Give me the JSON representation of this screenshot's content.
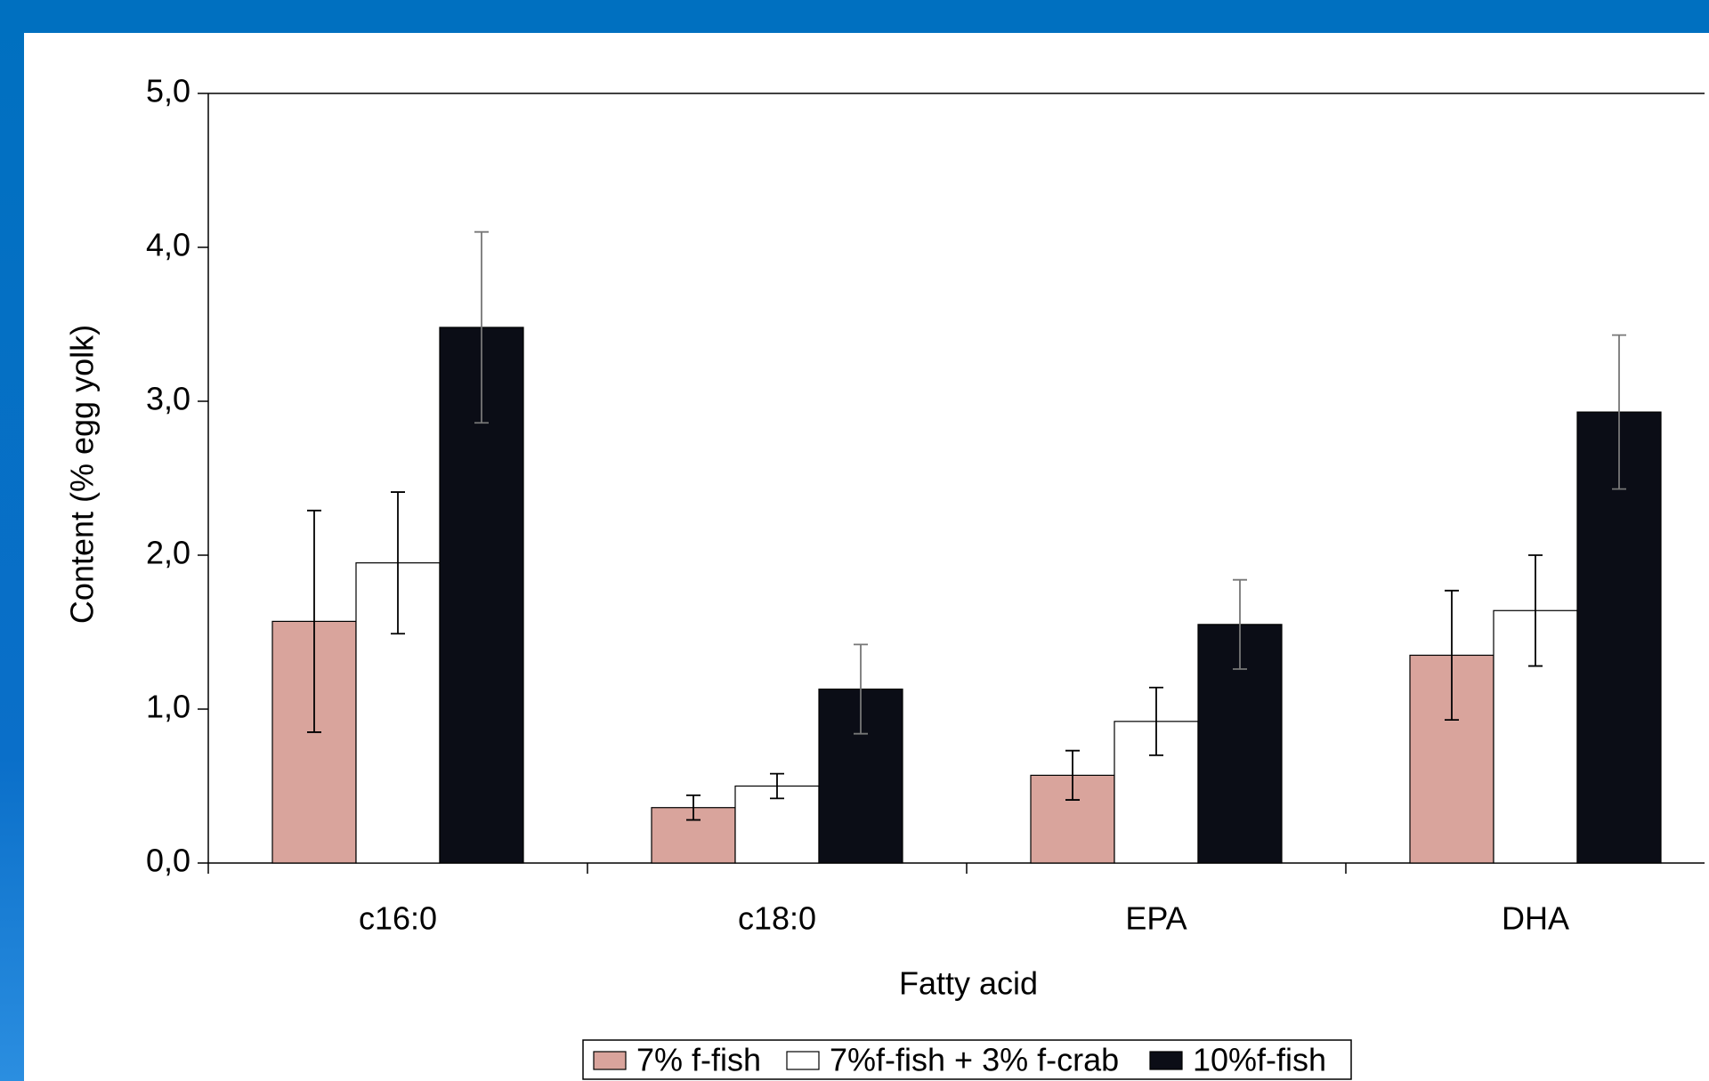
{
  "chart_data": {
    "type": "bar",
    "x_label": "Fatty acid",
    "y_label": "Content (% egg yolk)",
    "categories": [
      "c16:0",
      "c18:0",
      "EPA",
      "DHA"
    ],
    "series": [
      {
        "name": "7% f-fish",
        "color": "#d9a49c",
        "values": [
          1.57,
          0.36,
          0.57,
          1.35
        ],
        "errors": [
          0.72,
          0.08,
          0.16,
          0.42
        ]
      },
      {
        "name": "7%f-fish + 3% f-crab",
        "color": "#ffffff",
        "values": [
          1.95,
          0.5,
          0.92,
          1.64
        ],
        "errors": [
          0.46,
          0.08,
          0.22,
          0.36
        ]
      },
      {
        "name": "10%f-fish",
        "color": "#0b0d16",
        "values": [
          3.48,
          1.13,
          1.55,
          2.93
        ],
        "errors": [
          0.62,
          0.29,
          0.29,
          0.5
        ]
      }
    ],
    "ylim": [
      0,
      5
    ],
    "yticks": [
      {
        "value": 0,
        "label": "0,0"
      },
      {
        "value": 1,
        "label": "1,0"
      },
      {
        "value": 2,
        "label": "2,0"
      },
      {
        "value": 3,
        "label": "3,0"
      },
      {
        "value": 4,
        "label": "4,0"
      },
      {
        "value": 5,
        "label": "5,0"
      }
    ]
  }
}
